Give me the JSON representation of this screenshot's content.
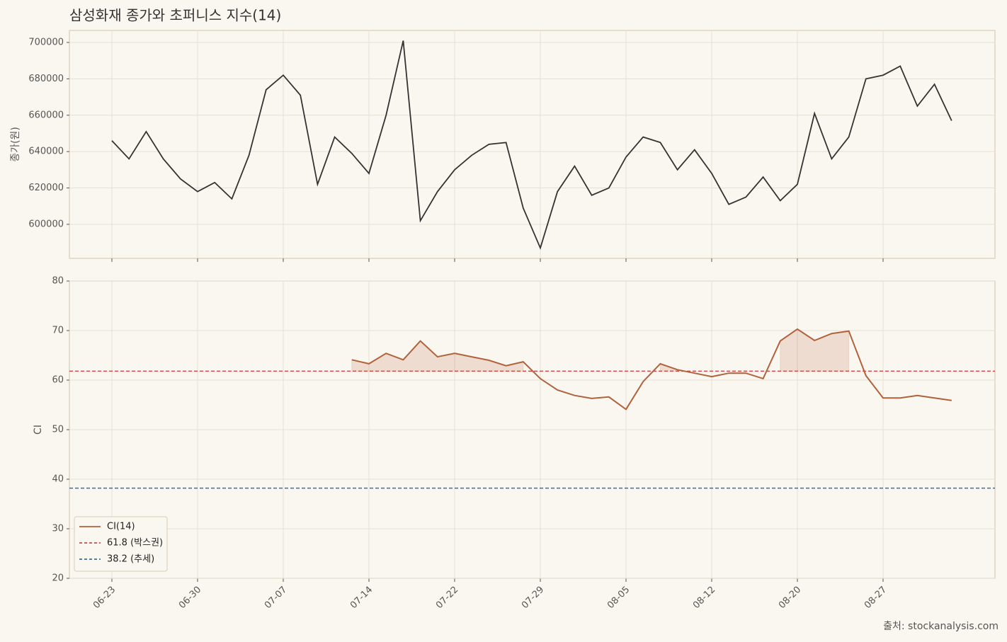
{
  "chart_data": [
    {
      "type": "line",
      "title": "삼성화재 종가와 초퍼니스 지수(14)",
      "ylabel": "종가(원)",
      "color": "#333333",
      "values": [
        646000,
        636000,
        651000,
        636000,
        625000,
        618000,
        623000,
        614000,
        638000,
        674000,
        682000,
        671000,
        622000,
        648000,
        639000,
        628000,
        660000,
        701000,
        602000,
        618000,
        630000,
        638000,
        644000,
        645000,
        609000,
        587000,
        618000,
        632000,
        616000,
        620000,
        637000,
        648000,
        645000,
        630000,
        641000,
        628000,
        611000,
        615000,
        626000,
        613000,
        622000,
        661000,
        636000,
        648000,
        680000,
        682000,
        687000,
        665000,
        677000,
        657000
      ],
      "ylim": [
        581300,
        706600
      ],
      "yticks": [
        600000,
        620000,
        640000,
        660000,
        680000,
        700000
      ],
      "grid": true
    },
    {
      "type": "line",
      "ylabel": "CI",
      "source": "출처: stockanalysis.com",
      "categories": [
        "06-23",
        null,
        null,
        null,
        null,
        "06-30",
        null,
        null,
        null,
        null,
        "07-07",
        null,
        null,
        null,
        null,
        "07-14",
        null,
        null,
        null,
        null,
        "07-22",
        null,
        null,
        null,
        null,
        "07-29",
        null,
        null,
        null,
        null,
        "08-05",
        null,
        null,
        null,
        null,
        "08-12",
        null,
        null,
        null,
        null,
        "08-20",
        null,
        null,
        null,
        null,
        "08-27",
        null,
        null,
        null,
        null
      ],
      "series": [
        {
          "name": "CI(14)",
          "color": "#b0623c",
          "shade": true,
          "values": [
            null,
            null,
            null,
            null,
            null,
            null,
            null,
            null,
            null,
            null,
            null,
            null,
            null,
            null,
            64.1,
            63.3,
            65.4,
            64.1,
            67.9,
            64.7,
            65.4,
            64.7,
            64.0,
            62.9,
            63.7,
            60.3,
            58.0,
            56.9,
            56.3,
            56.6,
            54.1,
            59.7,
            63.3,
            62.1,
            61.4,
            60.7,
            61.4,
            61.4,
            60.3,
            67.9,
            70.3,
            68.0,
            69.4,
            69.9,
            60.9,
            56.4,
            56.4,
            56.9,
            56.4,
            55.9
          ]
        }
      ],
      "hlines": [
        {
          "value": 61.8,
          "label": "61.8 (박스권)",
          "color": "#c44e4e"
        },
        {
          "value": 38.2,
          "label": "38.2 (추세)",
          "color": "#3a6e9e"
        }
      ],
      "ylim": [
        20,
        80
      ],
      "yticks": [
        20,
        30,
        40,
        50,
        60,
        70,
        80
      ],
      "grid": true,
      "legend": "lower left"
    }
  ]
}
